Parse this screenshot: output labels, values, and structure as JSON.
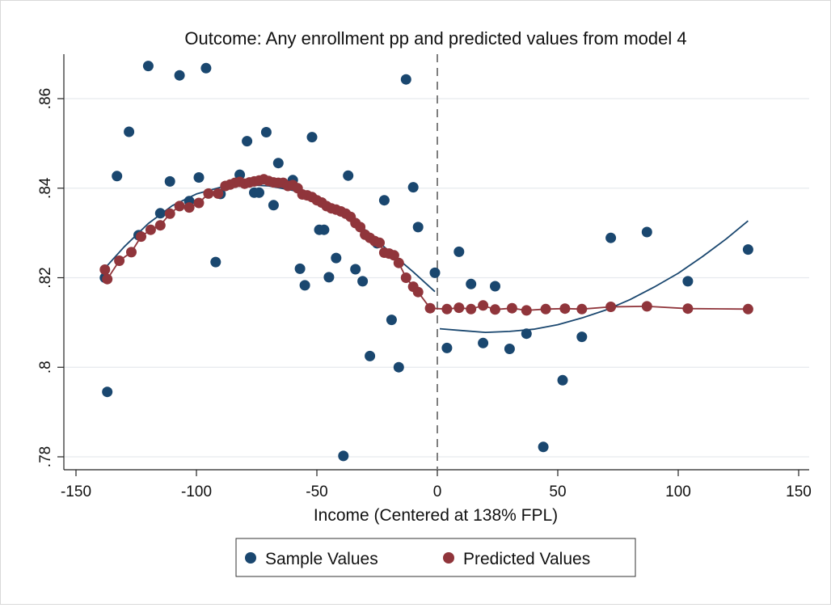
{
  "chart_data": {
    "type": "scatter",
    "title": "Outcome: Any enrollment pp and predicted values from model 4",
    "xlabel": "Income (Centered at 138% FPL)",
    "ylabel": "",
    "xlim": [
      -150,
      150
    ],
    "ylim": [
      0.78,
      0.87
    ],
    "x_ticks": [
      "-150",
      "-100",
      "-50",
      "0",
      "50",
      "100",
      "150"
    ],
    "y_ticks": [
      ".78",
      ".8",
      ".82",
      ".84",
      ".86"
    ],
    "grid": "horizontal",
    "cutoff_line": {
      "x": 0,
      "style": "dashed",
      "color": "#7f7f7f"
    },
    "legend": {
      "position": "bottom",
      "labels": [
        "Sample Values",
        "Predicted Values"
      ]
    },
    "colors": {
      "sample": "#1a476f",
      "predicted": "#90353b",
      "fit": "#1a476f"
    },
    "series": [
      {
        "name": "Sample Values",
        "kind": "scatter",
        "points": [
          [
            -138,
            0.82
          ],
          [
            -137,
            0.7945
          ],
          [
            -133,
            0.8427
          ],
          [
            -128,
            0.8526
          ],
          [
            -124,
            0.8295
          ],
          [
            -120,
            0.8673
          ],
          [
            -115,
            0.8344
          ],
          [
            -111,
            0.8415
          ],
          [
            -107,
            0.8652
          ],
          [
            -103,
            0.8371
          ],
          [
            -99,
            0.8424
          ],
          [
            -96,
            0.8668
          ],
          [
            -92,
            0.8235
          ],
          [
            -90,
            0.8387
          ],
          [
            -82,
            0.843
          ],
          [
            -79,
            0.8505
          ],
          [
            -76,
            0.839
          ],
          [
            -74,
            0.839
          ],
          [
            -71,
            0.8525
          ],
          [
            -68,
            0.8362
          ],
          [
            -66,
            0.8456
          ],
          [
            -60,
            0.8418
          ],
          [
            -57,
            0.822
          ],
          [
            -55,
            0.8183
          ],
          [
            -52,
            0.8514
          ],
          [
            -49,
            0.8307
          ],
          [
            -47,
            0.8307
          ],
          [
            -45,
            0.8201
          ],
          [
            -42,
            0.8244
          ],
          [
            -39,
            0.7802
          ],
          [
            -37,
            0.8428
          ],
          [
            -34,
            0.8219
          ],
          [
            -31,
            0.8192
          ],
          [
            -28,
            0.8025
          ],
          [
            -25,
            0.8277
          ],
          [
            -22,
            0.8373
          ],
          [
            -19,
            0.8106
          ],
          [
            -16,
            0.8
          ],
          [
            -13,
            0.8643
          ],
          [
            -10,
            0.8402
          ],
          [
            -8,
            0.8313
          ],
          [
            -1,
            0.8211
          ],
          [
            4,
            0.8043
          ],
          [
            9,
            0.8258
          ],
          [
            14,
            0.8186
          ],
          [
            19,
            0.8054
          ],
          [
            24,
            0.8181
          ],
          [
            30,
            0.8041
          ],
          [
            37,
            0.8075
          ],
          [
            44,
            0.7822
          ],
          [
            52,
            0.7971
          ],
          [
            60,
            0.8068
          ],
          [
            72,
            0.8289
          ],
          [
            87,
            0.8302
          ],
          [
            104,
            0.8192
          ],
          [
            129,
            0.8263
          ]
        ]
      },
      {
        "name": "Predicted Values",
        "kind": "scatter+line",
        "points": [
          [
            -138,
            0.8218
          ],
          [
            -137,
            0.8197
          ],
          [
            -132,
            0.8238
          ],
          [
            -127,
            0.8257
          ],
          [
            -123,
            0.8292
          ],
          [
            -119,
            0.8307
          ],
          [
            -115,
            0.8317
          ],
          [
            -111,
            0.8343
          ],
          [
            -107,
            0.836
          ],
          [
            -103,
            0.8357
          ],
          [
            -99,
            0.8367
          ],
          [
            -95,
            0.8388
          ],
          [
            -91,
            0.8388
          ],
          [
            -88,
            0.8405
          ],
          [
            -86,
            0.8408
          ],
          [
            -84,
            0.8412
          ],
          [
            -82,
            0.8414
          ],
          [
            -80,
            0.841
          ],
          [
            -78,
            0.8413
          ],
          [
            -76,
            0.8415
          ],
          [
            -74,
            0.8417
          ],
          [
            -72,
            0.842
          ],
          [
            -70,
            0.8416
          ],
          [
            -68,
            0.8413
          ],
          [
            -66,
            0.8412
          ],
          [
            -64,
            0.8412
          ],
          [
            -62,
            0.8405
          ],
          [
            -60,
            0.8407
          ],
          [
            -58,
            0.84
          ],
          [
            -56,
            0.8386
          ],
          [
            -54,
            0.8384
          ],
          [
            -52,
            0.838
          ],
          [
            -50,
            0.8373
          ],
          [
            -48,
            0.8368
          ],
          [
            -46,
            0.836
          ],
          [
            -44,
            0.8355
          ],
          [
            -42,
            0.8352
          ],
          [
            -40,
            0.8348
          ],
          [
            -38,
            0.8343
          ],
          [
            -36,
            0.8336
          ],
          [
            -34,
            0.8322
          ],
          [
            -32,
            0.8313
          ],
          [
            -30,
            0.8296
          ],
          [
            -28,
            0.8289
          ],
          [
            -26,
            0.8282
          ],
          [
            -24,
            0.8278
          ],
          [
            -22,
            0.8256
          ],
          [
            -20,
            0.8254
          ],
          [
            -18,
            0.825
          ],
          [
            -16,
            0.8233
          ],
          [
            -13,
            0.82
          ],
          [
            -10,
            0.818
          ],
          [
            -8,
            0.8168
          ],
          [
            -3,
            0.8132
          ],
          [
            4,
            0.813
          ],
          [
            9,
            0.8133
          ],
          [
            14,
            0.813
          ],
          [
            19,
            0.8138
          ],
          [
            24,
            0.8129
          ],
          [
            31,
            0.8132
          ],
          [
            37,
            0.8127
          ],
          [
            45,
            0.813
          ],
          [
            53,
            0.8131
          ],
          [
            60,
            0.813
          ],
          [
            72,
            0.8135
          ],
          [
            87,
            0.8136
          ],
          [
            104,
            0.8131
          ],
          [
            129,
            0.813
          ]
        ]
      },
      {
        "name": "",
        "kind": "line",
        "segment": "left-fit",
        "points": [
          [
            -137,
            0.8227
          ],
          [
            -130,
            0.8269
          ],
          [
            -120,
            0.8321
          ],
          [
            -110,
            0.8361
          ],
          [
            -100,
            0.8387
          ],
          [
            -90,
            0.8402
          ],
          [
            -80,
            0.8408
          ],
          [
            -70,
            0.8405
          ],
          [
            -60,
            0.8395
          ],
          [
            -50,
            0.8377
          ],
          [
            -40,
            0.8348
          ],
          [
            -30,
            0.8307
          ],
          [
            -20,
            0.8259
          ],
          [
            -10,
            0.8213
          ],
          [
            -1,
            0.8169
          ]
        ]
      },
      {
        "name": "",
        "kind": "line",
        "segment": "right-fit",
        "points": [
          [
            1,
            0.8086
          ],
          [
            10,
            0.8082
          ],
          [
            20,
            0.8078
          ],
          [
            30,
            0.808
          ],
          [
            40,
            0.8085
          ],
          [
            50,
            0.8095
          ],
          [
            60,
            0.811
          ],
          [
            70,
            0.8128
          ],
          [
            80,
            0.8151
          ],
          [
            90,
            0.8179
          ],
          [
            100,
            0.821
          ],
          [
            110,
            0.8247
          ],
          [
            120,
            0.8287
          ],
          [
            129,
            0.8327
          ]
        ]
      }
    ]
  }
}
